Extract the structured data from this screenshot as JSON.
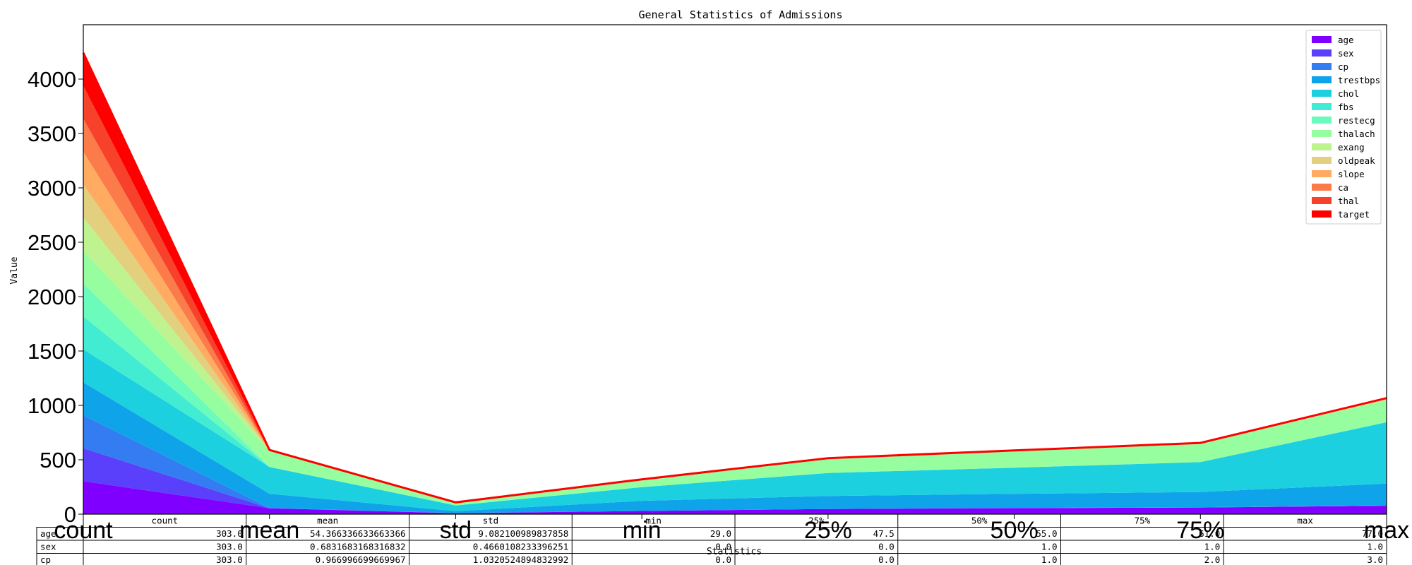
{
  "chart_data": {
    "type": "area",
    "stacked": true,
    "title": "General Statistics of Admissions",
    "xlabel": "Statistics",
    "ylabel": "Value",
    "categories": [
      "count",
      "mean",
      "std",
      "min",
      "25%",
      "50%",
      "75%",
      "max"
    ],
    "ylim": [
      0,
      4500
    ],
    "yticks": [
      0,
      500,
      1000,
      1500,
      2000,
      2500,
      3000,
      3500,
      4000
    ],
    "grid": false,
    "legend_position": "top-right",
    "series": [
      {
        "name": "age",
        "color": "#8000ff",
        "values": [
          303,
          54.37,
          9.08,
          29,
          47.5,
          55,
          61,
          77
        ]
      },
      {
        "name": "sex",
        "color": "#5a3ffb",
        "values": [
          303,
          0.68,
          0.47,
          0,
          0,
          1,
          1,
          1
        ]
      },
      {
        "name": "cp",
        "color": "#337cf2",
        "values": [
          303,
          0.97,
          1.03,
          0,
          0,
          1,
          2,
          3
        ]
      },
      {
        "name": "trestbps",
        "color": "#0fa4ea",
        "values": [
          303,
          131.62,
          17.54,
          94,
          120,
          130,
          140,
          200
        ]
      },
      {
        "name": "chol",
        "color": "#1cd0e0",
        "values": [
          303,
          246.26,
          51.83,
          126,
          211,
          240,
          274.5,
          564
        ]
      },
      {
        "name": "fbs",
        "color": "#42ecd2",
        "values": [
          303,
          0.15,
          0.36,
          0,
          0,
          0,
          0,
          1
        ]
      },
      {
        "name": "restecg",
        "color": "#6bfbbd",
        "values": [
          303,
          0.53,
          0.53,
          0,
          0,
          1,
          1,
          2
        ]
      },
      {
        "name": "thalach",
        "color": "#97fea0",
        "values": [
          303,
          149.65,
          22.91,
          71,
          133.5,
          153,
          166,
          202
        ]
      },
      {
        "name": "exang",
        "color": "#bff38f",
        "values": [
          303,
          0.33,
          0.47,
          0,
          0,
          0,
          1,
          1
        ]
      },
      {
        "name": "oldpeak",
        "color": "#e2d07f",
        "values": [
          303,
          1.04,
          1.16,
          0,
          0,
          0.8,
          1.6,
          6.2
        ]
      },
      {
        "name": "slope",
        "color": "#ffab61",
        "values": [
          303,
          1.4,
          0.62,
          0,
          1,
          1,
          2,
          2
        ]
      },
      {
        "name": "ca",
        "color": "#fb7b4b",
        "values": [
          303,
          0.73,
          1.02,
          0,
          0,
          0,
          1,
          4
        ]
      },
      {
        "name": "thal",
        "color": "#f8412a",
        "values": [
          303,
          2.31,
          0.61,
          0,
          2,
          2,
          3,
          3
        ]
      },
      {
        "name": "target",
        "color": "#ff0000",
        "values": [
          303,
          0.54,
          0.5,
          0,
          0,
          1,
          1,
          1
        ]
      }
    ],
    "table": {
      "columns": [
        "count",
        "mean",
        "std",
        "min",
        "25%",
        "50%",
        "75%",
        "max"
      ],
      "rows": [
        {
          "label": "age",
          "cells": [
            "303.0",
            "54.366336633663366",
            "9.082100989837858",
            "29.0",
            "47.5",
            "55.0",
            "61.0",
            "77.0"
          ]
        },
        {
          "label": "sex",
          "cells": [
            "303.0",
            "0.6831683168316832",
            "0.4660108233396251",
            "0.0",
            "0.0",
            "1.0",
            "1.0",
            "1.0"
          ]
        },
        {
          "label": "cp",
          "cells": [
            "303.0",
            "0.966996699669967",
            "1.0320524894832992",
            "0.0",
            "0.0",
            "1.0",
            "2.0",
            "3.0"
          ]
        }
      ]
    }
  }
}
